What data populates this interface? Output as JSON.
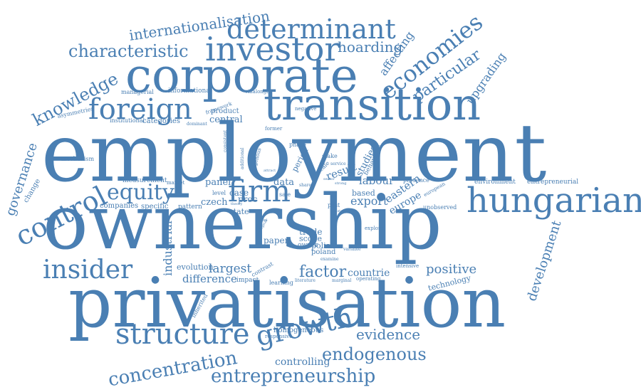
{
  "color": "#4a7fb3",
  "words": {
    "employment": "employment",
    "ownership": "ownership",
    "privatisation": "privatisation",
    "corporate": "corporate",
    "transition": "transition",
    "hungarian": "hungarian",
    "investor": "investor",
    "determinant": "determinant",
    "foreign": "foreign",
    "control": "control",
    "structure": "structure",
    "growth": "growth",
    "insider": "insider",
    "equity": "equity",
    "firm": "firm",
    "economies": "economies",
    "characteristic": "characteristic",
    "internationalisation": "internationalisation",
    "knowledge": "knowledge",
    "governance": "governance",
    "particular": "particular",
    "upgrading": "upgrading",
    "hoarding": "hoarding",
    "affecting": "affecting",
    "concentration": "concentration",
    "entrepreneurship": "entrepreneurship",
    "endogenous": "endogenous",
    "evidence": "evidence",
    "controlling": "controlling",
    "development": "development",
    "positive": "positive",
    "factor": "factor",
    "countrie": "countrie",
    "industrial": "industrial",
    "largest": "largest",
    "difference": "difference",
    "evolution": "evolution",
    "technology": "technology",
    "export": "export",
    "europe": "europe",
    "eastern": "eastern",
    "labour": "labour",
    "studies": "studies",
    "result": "result",
    "panel": "panel",
    "data": "data",
    "czech": "czech",
    "state": "state",
    "trade": "trade",
    "scope": "scope",
    "polish": "polish",
    "poland": "poland",
    "paper": "paper",
    "owner": "owner",
    "based": "based",
    "companies": "companies",
    "specific": "specific",
    "pattern": "pattern",
    "measurement": "measurement",
    "mechanism": "mechanism",
    "change": "change",
    "central": "central",
    "product": "product",
    "categories": "categories",
    "institutional": "institutional",
    "asymmetries": "asymmetries",
    "managerial": "managerial",
    "informational": "informational",
    "framework": "framework",
    "villalonga": "villalonga",
    "negative": "negative",
    "environment": "environment",
    "entrepreneurial": "entrepreneurial",
    "presence": "presence",
    "unobserved": "unobserved",
    "european": "european",
    "behaviour": "behaviour",
    "period": "period",
    "phase": "phase",
    "stake": "stake",
    "service": "service",
    "proc": "proc",
    "case": "case",
    "post": "post",
    "explore": "explore",
    "variable": "variable",
    "contrast": "contrast",
    "impact": "impact",
    "learning": "learning",
    "literature": "literature",
    "marginal": "marginal",
    "operating": "operating",
    "intensive": "intensive",
    "examine": "examine",
    "homogeneous": "homogeneous",
    "responsive": "responsive",
    "inherited": "inherited",
    "market": "market",
    "level": "level",
    "dominant": "dominant",
    "former": "former",
    "consistent": "consistent",
    "additional": "additional",
    "exogenous": "exogenous",
    "scale": "scale",
    "strong": "strong",
    "share": "share",
    "sale": "sale",
    "ecological": "ecological",
    "theory": "theory",
    "model": "model",
    "cluster": "cluster",
    "size": "size",
    "attract": "attract",
    "sector": "sector"
  }
}
